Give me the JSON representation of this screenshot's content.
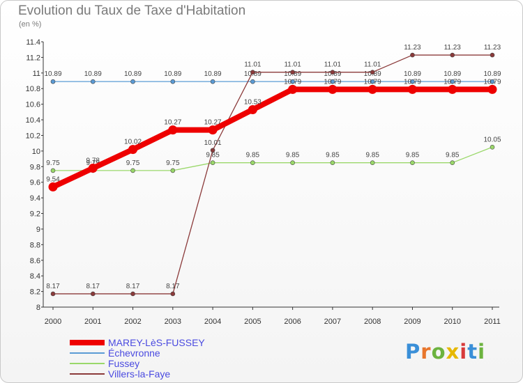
{
  "header": {
    "title": "Evolution du Taux de Taxe d'Habitation",
    "subtitle": "(en %)"
  },
  "logo": {
    "text": "Proxiti",
    "letter_colors": [
      "#3a8fd8",
      "#e8762c",
      "#6cb33f",
      "#e6b800",
      "#d83a3a",
      "#3a8fd8",
      "#6cb33f"
    ]
  },
  "chart_data": {
    "type": "line",
    "title": "Evolution du Taux de Taxe d'Habitation",
    "ylabel": "(en %)",
    "xlabel": "",
    "x": [
      2000,
      2001,
      2002,
      2003,
      2004,
      2005,
      2006,
      2007,
      2008,
      2009,
      2010,
      2011
    ],
    "ylim": [
      8,
      11.4
    ],
    "yticks": [
      8,
      8.2,
      8.4,
      8.6,
      8.8,
      9,
      9.2,
      9.4,
      9.6,
      9.8,
      10,
      10.2,
      10.4,
      10.6,
      10.8,
      11,
      11.2,
      11.4
    ],
    "grid": false,
    "legend_position": "bottom-left",
    "series": [
      {
        "name": "MAREY-LèS-FUSSEY",
        "color": "#ee0000",
        "bold": true,
        "values": [
          9.54,
          9.78,
          10.02,
          10.27,
          10.27,
          10.53,
          10.79,
          10.79,
          10.79,
          10.79,
          10.79,
          10.79
        ]
      },
      {
        "name": "Échevronne",
        "color": "#5b9bd5",
        "bold": false,
        "values": [
          10.89,
          10.89,
          10.89,
          10.89,
          10.89,
          10.89,
          10.89,
          10.89,
          10.89,
          10.89,
          10.89,
          10.89
        ]
      },
      {
        "name": "Fussey",
        "color": "#9ad86a",
        "bold": false,
        "values": [
          9.75,
          9.75,
          9.75,
          9.75,
          9.85,
          9.85,
          9.85,
          9.85,
          9.85,
          9.85,
          9.85,
          10.05
        ]
      },
      {
        "name": "Villers-la-Faye",
        "color": "#8b3a3a",
        "bold": false,
        "values": [
          8.17,
          8.17,
          8.17,
          8.17,
          10.01,
          11.01,
          11.01,
          11.01,
          11.01,
          11.23,
          11.23,
          11.23
        ]
      }
    ]
  }
}
